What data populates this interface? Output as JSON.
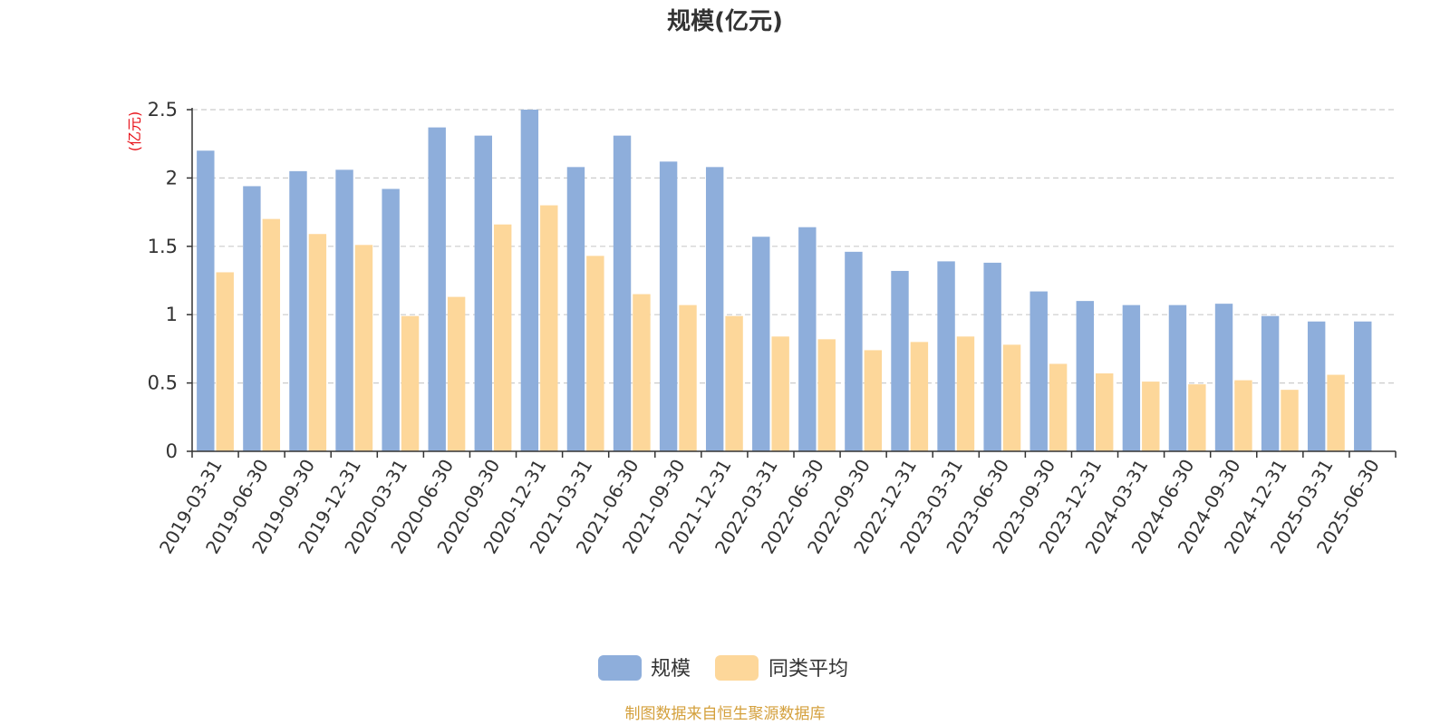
{
  "chart_data": {
    "type": "bar",
    "title": "规模(亿元)",
    "ylabel": "(亿元)",
    "ylim": [
      0,
      2.5
    ],
    "yticks": [
      "0",
      "0.5",
      "1",
      "1.5",
      "2",
      "2.5"
    ],
    "grid": true,
    "legend_position": "bottom-center",
    "categories": [
      "2019-03-31",
      "2019-06-30",
      "2019-09-30",
      "2019-12-31",
      "2020-03-31",
      "2020-06-30",
      "2020-09-30",
      "2020-12-31",
      "2021-03-31",
      "2021-06-30",
      "2021-09-30",
      "2021-12-31",
      "2022-03-31",
      "2022-06-30",
      "2022-09-30",
      "2022-12-31",
      "2023-03-31",
      "2023-06-30",
      "2023-09-30",
      "2023-12-31",
      "2024-03-31",
      "2024-06-30",
      "2024-09-30",
      "2024-12-31",
      "2025-03-31",
      "2025-06-30"
    ],
    "series": [
      {
        "name": "规模",
        "color": "#8eaedb",
        "values": [
          2.2,
          1.94,
          2.05,
          2.06,
          1.92,
          2.37,
          2.31,
          2.5,
          2.08,
          2.31,
          2.12,
          2.08,
          1.57,
          1.64,
          1.46,
          1.32,
          1.39,
          1.38,
          1.17,
          1.1,
          1.07,
          1.07,
          1.08,
          0.99,
          0.95,
          0.95
        ]
      },
      {
        "name": "同类平均",
        "color": "#fdd79a",
        "values": [
          1.31,
          1.7,
          1.59,
          1.51,
          0.99,
          1.13,
          1.66,
          1.8,
          1.43,
          1.15,
          1.07,
          0.99,
          0.84,
          0.82,
          0.74,
          0.8,
          0.84,
          0.78,
          0.64,
          0.57,
          0.51,
          0.49,
          0.52,
          0.45,
          0.56,
          null
        ]
      }
    ]
  },
  "source_text": "制图数据来自恒生聚源数据库",
  "colors": {
    "axis": "#333333",
    "grid": "#cccccc",
    "unit_label": "#e8121a",
    "source_text": "#d4a03c"
  }
}
